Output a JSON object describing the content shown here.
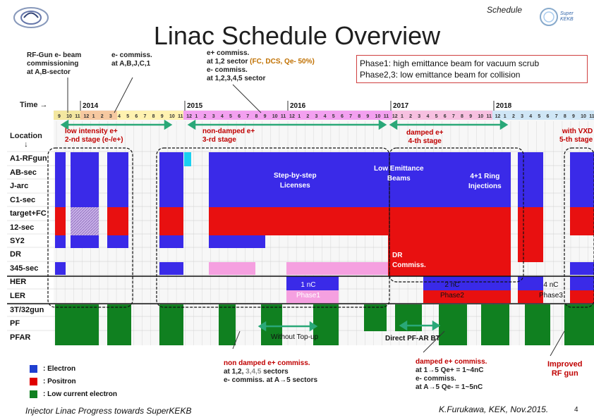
{
  "header": {
    "label": "Schedule",
    "title": "Linac Schedule Overview"
  },
  "notes": {
    "rfgun": [
      "RF-Gun e- beam",
      "commissioning",
      "at A,B-sector"
    ],
    "ecommiss": [
      "e- commiss.",
      "at A,B,J,C,1"
    ],
    "epcommiss_l1": "e+ commiss.",
    "epcommiss_l2a": "at 1,2 sector ",
    "epcommiss_l2b": "(FC, DCS, Qe- 50%)",
    "epcommiss_l3": "e- commiss.",
    "epcommiss_l4": "at 1,2,3,4,5 sector"
  },
  "phase_box": [
    "Phase1: high emittance beam for vacuum scrub",
    "Phase2,3: low emittance beam for collision"
  ],
  "axis": {
    "time_label": "Time →",
    "location_label": "Location",
    "location_arrow": "↓",
    "years": [
      "2014",
      "2015",
      "2016",
      "2017",
      "2018"
    ]
  },
  "stages": {
    "s2": [
      "low intensity e+",
      "2-nd stage (e-/e+)"
    ],
    "s3": [
      "non-damped e+",
      "3-rd stage"
    ],
    "s4": [
      "damped e+",
      "4-th stage"
    ],
    "s5": [
      "with VXD",
      "5-th stage"
    ]
  },
  "rows": [
    "A1-RFgun",
    "AB-sec",
    "J-arc",
    "C1-sec",
    "target+FC",
    "12-sec",
    "SY2",
    "DR",
    "345-sec",
    "HER",
    "LER",
    "3T/32gun",
    "PF",
    "PFAR"
  ],
  "annotations": {
    "step": [
      "Step-by-step",
      "Licenses"
    ],
    "lowemit": [
      "Low Emittance",
      "Beams"
    ],
    "ring": [
      "4+1 Ring",
      "Injections"
    ],
    "dr": [
      "DR",
      "Commiss."
    ],
    "phase1": [
      "1 nC",
      "Phase1"
    ],
    "phase2": [
      "2 nC",
      "Phase2"
    ],
    "phase3": [
      "4 nC",
      "Phase3"
    ],
    "topup": "Without Top-up",
    "direct": "Direct PF-AR BT"
  },
  "legend": [
    {
      "color": "#1f3fd0",
      "label": ": Electron"
    },
    {
      "color": "#e00000",
      "label": ": Positron"
    },
    {
      "color": "#108020",
      "label": ": Low current electron"
    }
  ],
  "bottom_notes": {
    "nondamped_l1": "non damped e+ commiss.",
    "nondamped_l2a": "at 1,2, ",
    "nondamped_l2b": "3,4,5",
    "nondamped_l2c": " sectors",
    "nondamped_l3": "e- commiss. at A→5 sectors",
    "damped": [
      "damped e+ commiss.",
      "at 1→5 Qe+ = 1~4nC",
      "e- commiss.",
      "at A→5 Qe- = 1~5nC"
    ],
    "improved": [
      "Improved",
      "RF gun"
    ]
  },
  "footer": {
    "left": "Injector Linac Progress towards SuperKEKB",
    "right": "K.Furukawa, KEK, Nov.2015.",
    "page": "4"
  },
  "logos": {
    "right_logo_text": "Super KEKB"
  }
}
